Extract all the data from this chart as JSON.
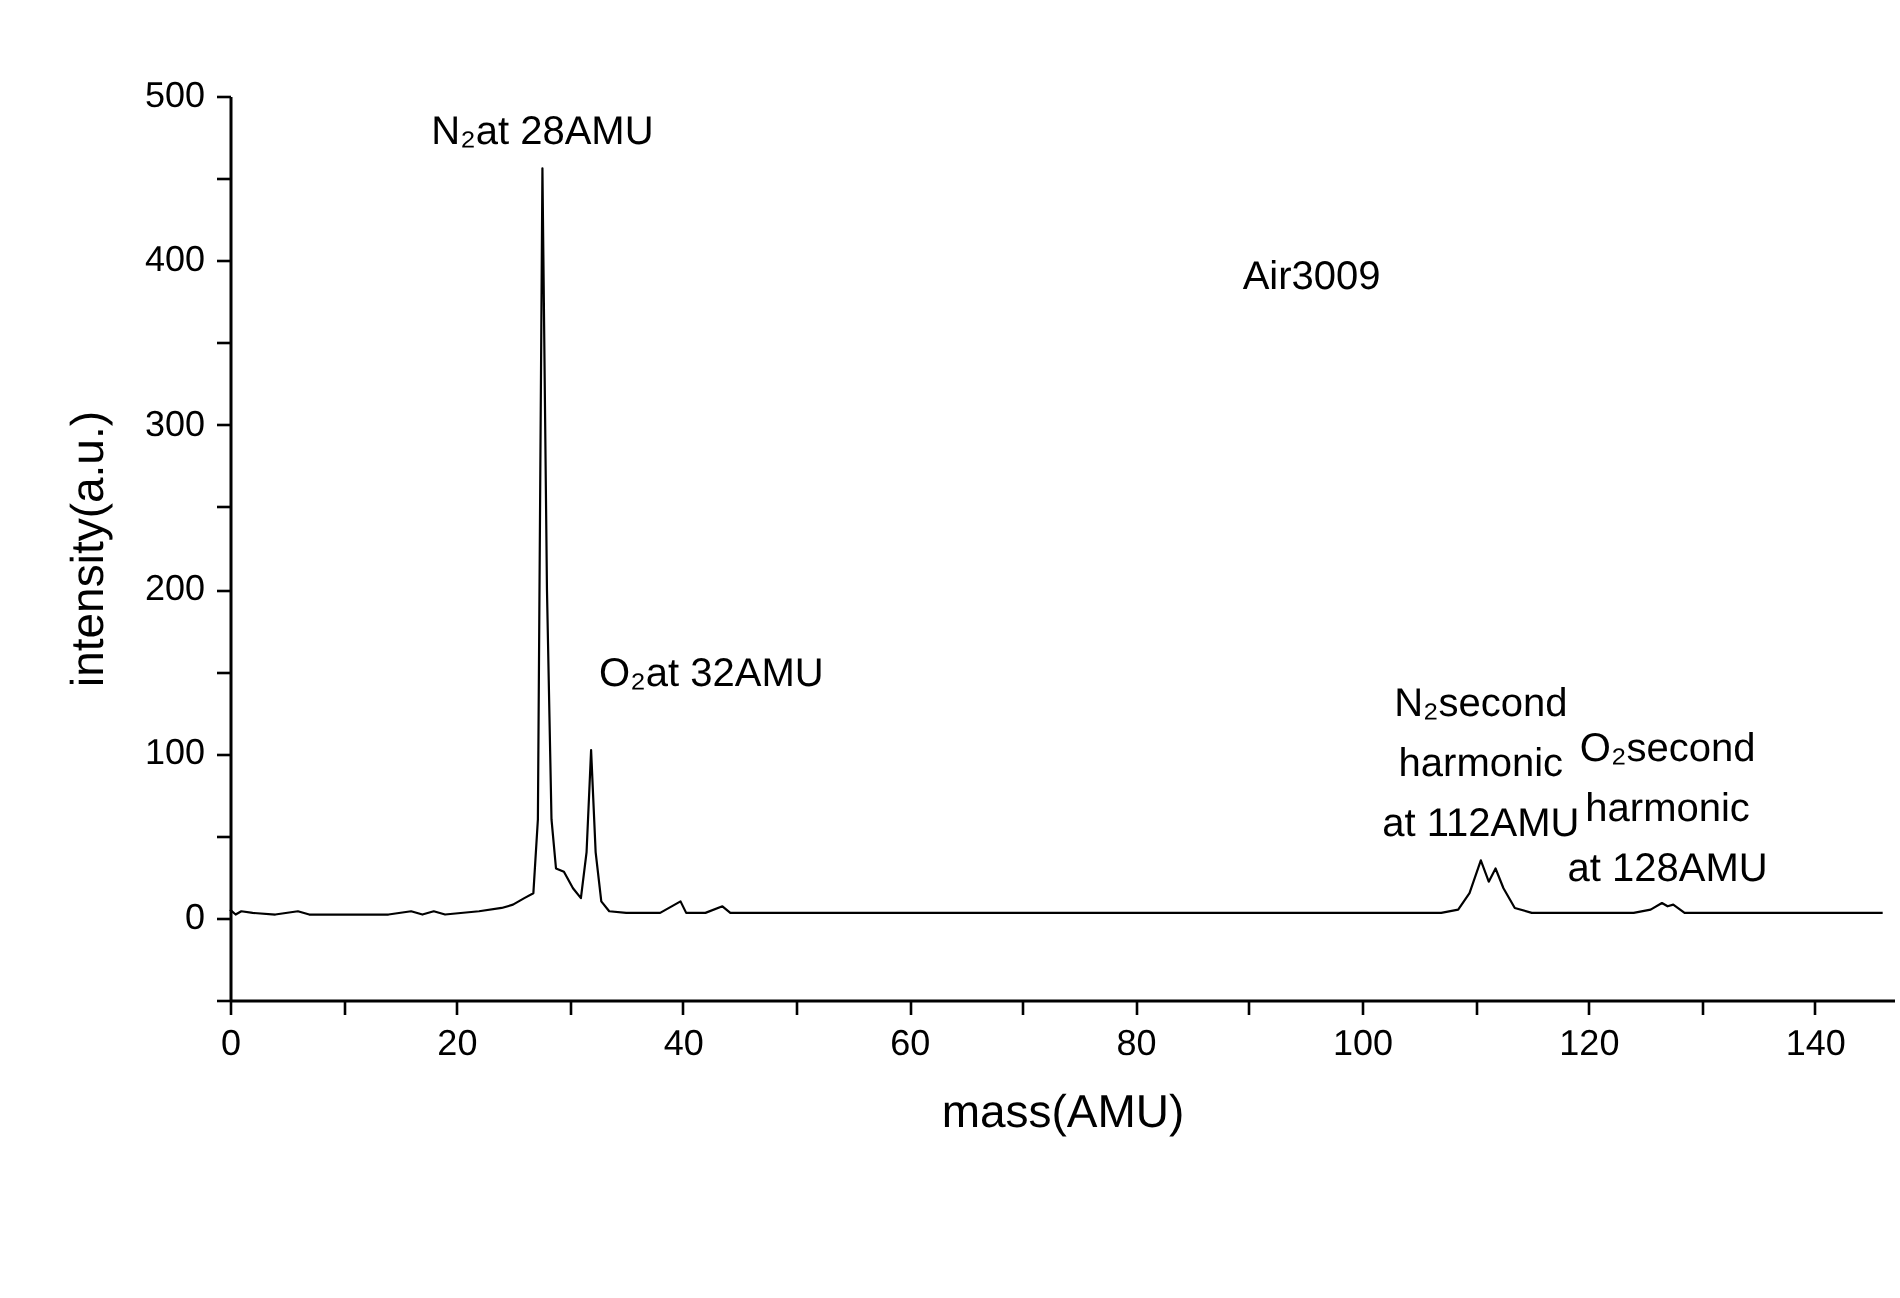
{
  "chart_data": {
    "type": "line",
    "xlabel": "mass(AMU)",
    "ylabel": "intensity(a.u.)",
    "x": [
      0,
      0.5,
      1,
      2,
      4,
      6,
      7,
      10,
      14,
      16,
      17,
      18,
      19,
      22,
      24,
      25,
      26,
      26.8,
      27.2,
      27.6,
      28.0,
      28.4,
      28.8,
      29.5,
      30.3,
      31.0,
      31.5,
      31.9,
      32.3,
      32.8,
      33.5,
      35,
      38,
      39.8,
      40.3,
      42,
      43.5,
      44.2,
      50,
      60,
      70,
      80,
      90,
      100,
      105,
      107,
      108.5,
      109.5,
      110.5,
      111.2,
      111.8,
      112.5,
      113.5,
      115,
      120,
      124,
      125.5,
      126.5,
      127,
      127.5,
      128.5,
      135,
      140,
      146
    ],
    "series": [
      {
        "color": "#000000",
        "values": [
          5,
          2,
          4,
          3,
          2,
          4,
          2,
          2,
          2,
          4,
          2,
          4,
          2,
          4,
          6,
          8,
          12,
          15,
          60,
          456,
          200,
          60,
          30,
          28,
          18,
          12,
          40,
          102,
          40,
          10,
          4,
          3,
          3,
          10,
          3,
          3,
          7,
          3,
          3,
          3,
          3,
          3,
          3,
          3,
          3,
          3,
          5,
          15,
          35,
          22,
          30,
          18,
          6,
          3,
          3,
          3,
          5,
          9,
          7,
          8,
          3,
          3,
          3,
          3
        ]
      }
    ],
    "xlim": [
      0,
      147
    ],
    "ylim": [
      -50,
      500
    ],
    "xticks": [
      0,
      {
        "value": 10,
        "label": null
      },
      20,
      {
        "value": 30,
        "label": null
      },
      40,
      {
        "value": 50,
        "label": null
      },
      60,
      {
        "value": 70,
        "label": null
      },
      80,
      {
        "value": 90,
        "label": null
      },
      100,
      {
        "value": 110,
        "label": null
      },
      120,
      {
        "value": 130,
        "label": null
      },
      140
    ],
    "yticks": [
      {
        "value": -50,
        "label": null
      },
      0,
      {
        "value": 50,
        "label": null
      },
      100,
      {
        "value": 150,
        "label": null
      },
      200,
      {
        "value": 250,
        "label": null
      },
      300,
      {
        "value": 350,
        "label": null
      },
      400,
      {
        "value": 450,
        "label": null
      },
      500
    ],
    "annotations": [
      {
        "text": "N₂at 28AMU",
        "x": 27.6,
        "y": 456
      },
      {
        "text": "O₂at 32AMU",
        "x": 31.9,
        "y": 102
      },
      {
        "text": "N₂second\nharmonic\nat 112AMU",
        "x": 110.5,
        "y": 35
      },
      {
        "text": "O₂second\nharmonic\nat 128AMU",
        "x": 127,
        "y": 8
      },
      "Air3009"
    ],
    "grid": false,
    "marker": "none",
    "line_style": "solid"
  }
}
